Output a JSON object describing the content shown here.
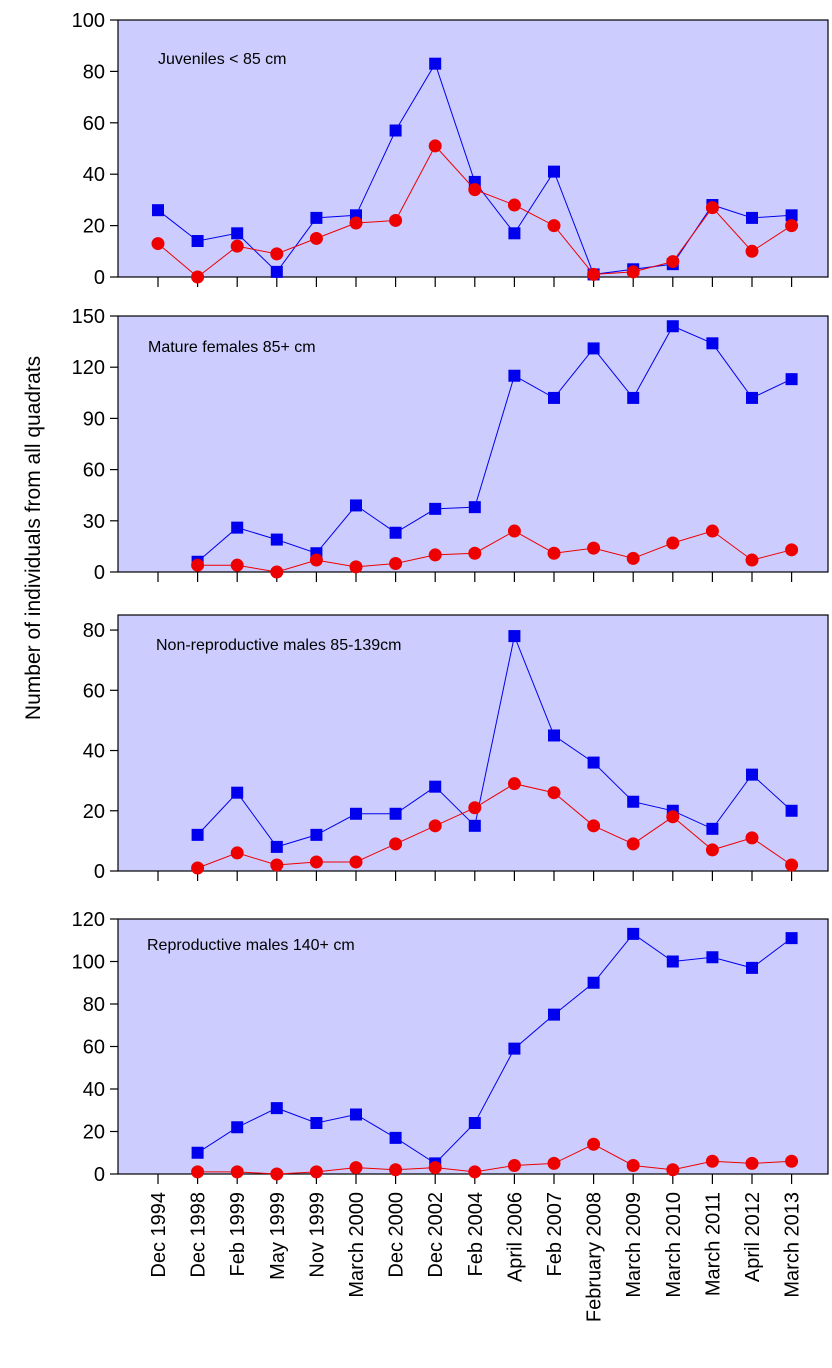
{
  "figure": {
    "ylabel": "Number of individuals from all quadrats"
  },
  "chart_data": {
    "type": "line",
    "categories": [
      "Dec 1994",
      "Dec 1998",
      "Feb 1999",
      "May 1999",
      "Nov 1999",
      "March 2000",
      "Dec 2000",
      "Dec 2002",
      "Feb 2004",
      "April 2006",
      "Feb 2007",
      "February 2008",
      "March 2009",
      "March 2010",
      "March 2011",
      "April 2012",
      "March 2013"
    ],
    "ylabel": "Number of individuals from all quadrats",
    "grid": false,
    "colors": {
      "blue_series": "#0000ee",
      "red_series": "#ee0000",
      "plot_background": "#ccccff"
    },
    "panels": [
      {
        "title": "Juveniles < 85 cm",
        "ylim": [
          0,
          100
        ],
        "yticks": [
          0,
          20,
          40,
          60,
          80,
          100
        ],
        "series": [
          {
            "color": "#0000ee",
            "marker": "square",
            "values": [
              26,
              14,
              17,
              2,
              23,
              24,
              57,
              83,
              37,
              17,
              41,
              1,
              3,
              5,
              28,
              23,
              24
            ]
          },
          {
            "color": "#ee0000",
            "marker": "circle",
            "values": [
              13,
              0,
              12,
              9,
              15,
              21,
              22,
              51,
              34,
              28,
              20,
              1,
              2,
              6,
              27,
              10,
              20
            ]
          }
        ]
      },
      {
        "title": "Mature females 85+ cm",
        "ylim": [
          0,
          150
        ],
        "yticks": [
          0,
          30,
          60,
          90,
          120,
          150
        ],
        "series": [
          {
            "color": "#0000ee",
            "marker": "square",
            "values": [
              null,
              6,
              26,
              19,
              11,
              39,
              23,
              37,
              38,
              115,
              102,
              131,
              102,
              144,
              134,
              102,
              113
            ]
          },
          {
            "color": "#ee0000",
            "marker": "circle",
            "values": [
              null,
              4,
              4,
              0,
              7,
              3,
              5,
              10,
              11,
              24,
              11,
              14,
              8,
              17,
              24,
              7,
              13
            ]
          }
        ]
      },
      {
        "title": "Non-reproductive males 85-139cm",
        "ylim": [
          0,
          85
        ],
        "yticks": [
          0,
          20,
          40,
          60,
          80
        ],
        "series": [
          {
            "color": "#0000ee",
            "marker": "square",
            "values": [
              null,
              12,
              26,
              8,
              12,
              19,
              19,
              28,
              15,
              78,
              45,
              36,
              23,
              20,
              14,
              32,
              20
            ]
          },
          {
            "color": "#ee0000",
            "marker": "circle",
            "values": [
              null,
              1,
              6,
              2,
              3,
              3,
              9,
              15,
              21,
              29,
              26,
              15,
              9,
              18,
              7,
              11,
              2
            ]
          }
        ]
      },
      {
        "title": "Reproductive males 140+ cm",
        "ylim": [
          0,
          120
        ],
        "yticks": [
          0,
          20,
          40,
          60,
          80,
          100,
          120
        ],
        "series": [
          {
            "color": "#0000ee",
            "marker": "square",
            "values": [
              null,
              10,
              22,
              31,
              24,
              28,
              17,
              5,
              24,
              59,
              75,
              90,
              113,
              100,
              102,
              97,
              111
            ]
          },
          {
            "color": "#ee0000",
            "marker": "circle",
            "values": [
              null,
              1,
              1,
              0,
              1,
              3,
              2,
              3,
              1,
              4,
              5,
              14,
              4,
              2,
              6,
              5,
              6
            ]
          }
        ]
      }
    ]
  }
}
